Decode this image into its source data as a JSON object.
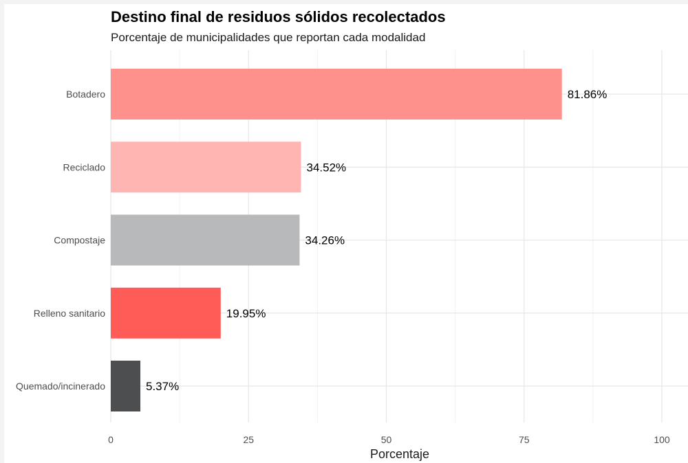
{
  "chart_data": {
    "type": "bar",
    "orientation": "horizontal",
    "title": "Destino final de residuos sólidos recolectados",
    "subtitle": "Porcentaje de municipalidades que reportan cada modalidad",
    "xlabel": "Porcentaje",
    "ylabel": "",
    "xlim": [
      0,
      100
    ],
    "xticks": [
      0,
      25,
      50,
      75,
      100
    ],
    "grid": true,
    "legend": "none",
    "categories": [
      "Botadero",
      "Reciclado",
      "Compostaje",
      "Relleno sanitario",
      "Quemado/incinerado"
    ],
    "values": [
      81.86,
      34.52,
      34.26,
      19.95,
      5.37
    ],
    "value_labels": [
      "81.86%",
      "34.52%",
      "34.26%",
      "19.95%",
      "5.37%"
    ],
    "colors": [
      "#ff918c",
      "#ffb6b3",
      "#b8b9bb",
      "#ff5c58",
      "#4d4e50"
    ]
  }
}
